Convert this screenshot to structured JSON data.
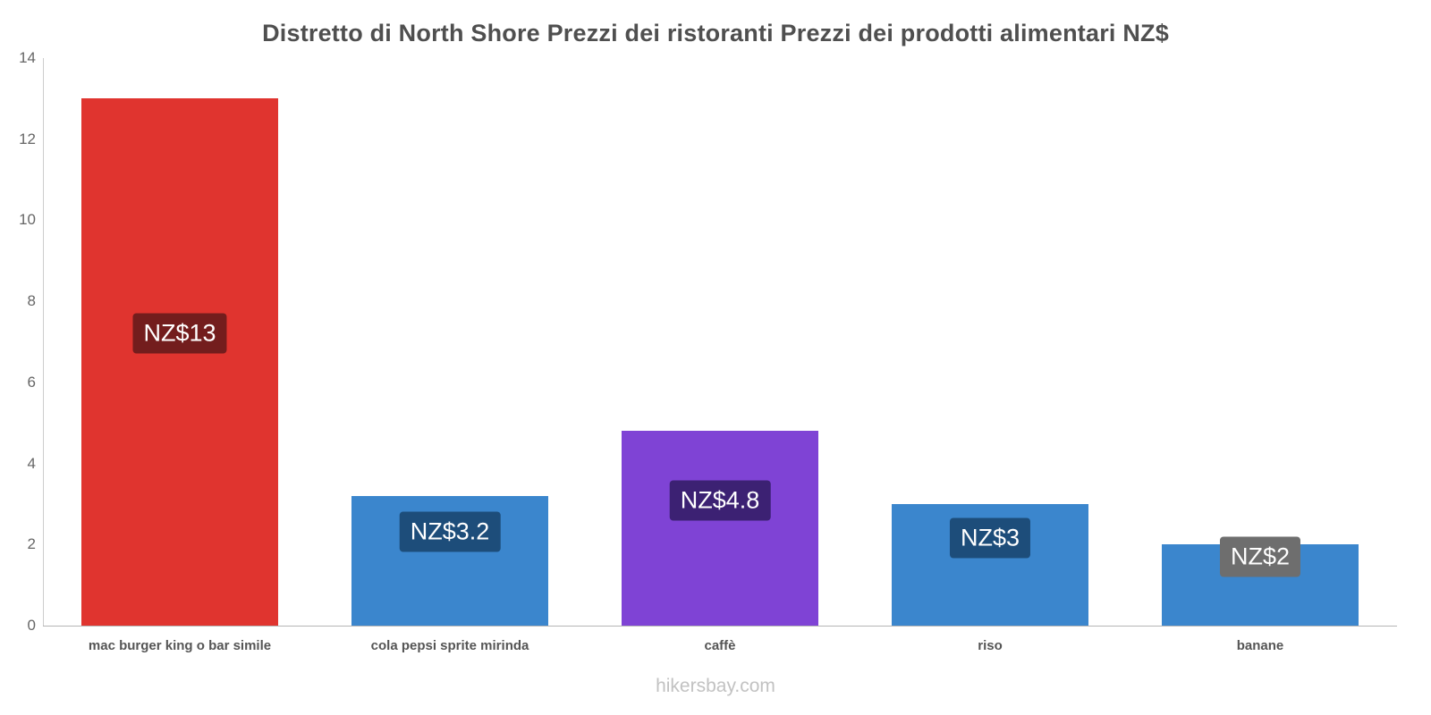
{
  "footer": "hikersbay.com",
  "chart_data": {
    "type": "bar",
    "title": "Distretto di North Shore Prezzi dei ristoranti Prezzi dei prodotti alimentari NZ$",
    "xlabel": "",
    "ylabel": "",
    "currency": "NZ$",
    "categories": [
      "mac burger king o bar simile",
      "cola pepsi sprite mirinda",
      "caffè",
      "riso",
      "banane"
    ],
    "values": [
      13,
      3.2,
      4.8,
      3,
      2
    ],
    "value_labels": [
      "NZ$13",
      "NZ$3.2",
      "NZ$4.8",
      "NZ$3",
      "NZ$2"
    ],
    "bar_colors": [
      "#e0342f",
      "#3b86cd",
      "#7f43d5",
      "#3b86cd",
      "#3b86cd"
    ],
    "value_label_bg": [
      "#731d1d",
      "#1d4d7a",
      "#3c2173",
      "#1d4d7a",
      "#6e6e6e"
    ],
    "value_label_pos_frac": [
      0.555,
      0.72,
      0.645,
      0.72,
      0.85
    ],
    "ylim": [
      0,
      14
    ],
    "yticks": [
      0,
      2,
      4,
      6,
      8,
      10,
      12,
      14
    ],
    "grid": false,
    "legend": "none"
  }
}
